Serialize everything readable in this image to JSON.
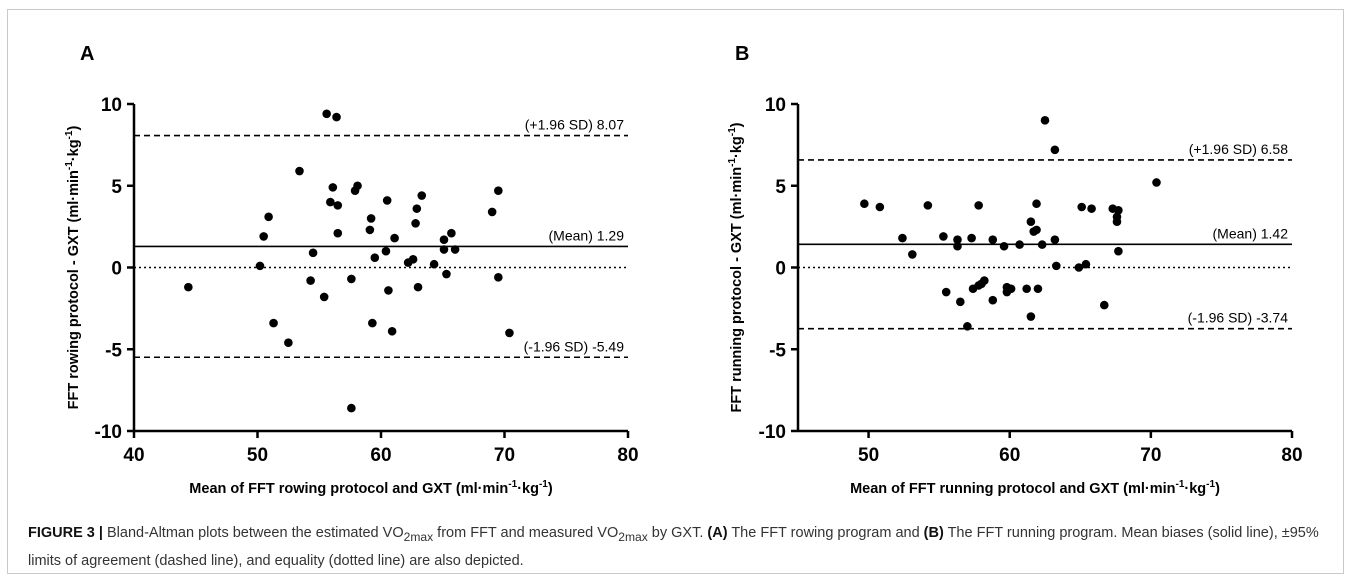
{
  "chart_data": [
    {
      "type": "scatter",
      "panel_letter": "A",
      "ylabel": {
        "pre": "FFT rowing protocol - GXT (ml·min",
        "mid": "·kg",
        "post": ")",
        "sup1": "-1",
        "sup2": "-1"
      },
      "xlabel": {
        "pre": "Mean of FFT rowing protocol and GXT (ml·min",
        "mid": "·kg",
        "post": ")",
        "sup1": "-1",
        "sup2": "-1"
      },
      "xlim": [
        40,
        80
      ],
      "ylim": [
        -10,
        10
      ],
      "xticks": [
        "40",
        "50",
        "60",
        "70",
        "80"
      ],
      "yticks": [
        "10",
        "5",
        "0",
        "-5",
        "-10"
      ],
      "mean_bias": 1.29,
      "upper_loa": 8.07,
      "lower_loa": -5.49,
      "mean_label": "(Mean) 1.29",
      "upper_label": "(+1.96 SD) 8.07",
      "lower_label": "(-1.96 SD) -5.49",
      "points": [
        [
          44.4,
          -1.2
        ],
        [
          50.2,
          0.1
        ],
        [
          50.5,
          1.9
        ],
        [
          50.9,
          3.1
        ],
        [
          51.3,
          -3.4
        ],
        [
          52.5,
          -4.6
        ],
        [
          53.4,
          5.9
        ],
        [
          54.3,
          -0.8
        ],
        [
          54.5,
          0.9
        ],
        [
          55.4,
          -1.8
        ],
        [
          55.6,
          9.4
        ],
        [
          55.9,
          4.0
        ],
        [
          56.1,
          4.9
        ],
        [
          56.4,
          9.2
        ],
        [
          56.5,
          3.8
        ],
        [
          56.5,
          2.1
        ],
        [
          57.6,
          -0.7
        ],
        [
          57.6,
          -8.6
        ],
        [
          57.9,
          4.7
        ],
        [
          58.1,
          5.0
        ],
        [
          59.1,
          2.3
        ],
        [
          59.2,
          3.0
        ],
        [
          59.3,
          -3.4
        ],
        [
          59.5,
          0.6
        ],
        [
          60.4,
          1.0
        ],
        [
          60.5,
          4.1
        ],
        [
          60.6,
          -1.4
        ],
        [
          60.9,
          -3.9
        ],
        [
          61.1,
          1.8
        ],
        [
          62.2,
          0.3
        ],
        [
          62.6,
          0.5
        ],
        [
          62.8,
          2.7
        ],
        [
          62.9,
          3.6
        ],
        [
          63.0,
          -1.2
        ],
        [
          63.3,
          4.4
        ],
        [
          64.3,
          0.2
        ],
        [
          65.1,
          1.7
        ],
        [
          65.1,
          1.1
        ],
        [
          65.3,
          -0.4
        ],
        [
          65.7,
          2.1
        ],
        [
          66.0,
          1.1
        ],
        [
          69.0,
          3.4
        ],
        [
          69.5,
          4.7
        ],
        [
          69.5,
          -0.6
        ],
        [
          70.4,
          -4.0
        ]
      ]
    },
    {
      "type": "scatter",
      "panel_letter": "B",
      "ylabel": {
        "pre": "FFT running protocol - GXT (ml·min",
        "mid": "·kg",
        "post": ")",
        "sup1": "-1",
        "sup2": "-1"
      },
      "xlabel": {
        "pre": "Mean of FFT running protocol and GXT (ml·min",
        "mid": "·kg",
        "post": ")",
        "sup1": "-1",
        "sup2": "-1"
      },
      "xlim": [
        45,
        80
      ],
      "ylim": [
        -10,
        10
      ],
      "xticks": [
        "50",
        "60",
        "70",
        "80"
      ],
      "yticks": [
        "10",
        "5",
        "0",
        "-5",
        "-10"
      ],
      "mean_bias": 1.42,
      "upper_loa": 6.58,
      "lower_loa": -3.74,
      "mean_label": "(Mean) 1.42",
      "upper_label": "(+1.96 SD) 6.58",
      "lower_label": "(-1.96 SD) -3.74",
      "points": [
        [
          49.7,
          3.9
        ],
        [
          50.8,
          3.7
        ],
        [
          52.4,
          1.8
        ],
        [
          53.1,
          0.8
        ],
        [
          54.2,
          3.8
        ],
        [
          55.3,
          1.9
        ],
        [
          55.5,
          -1.5
        ],
        [
          56.3,
          1.7
        ],
        [
          56.3,
          1.3
        ],
        [
          56.5,
          -2.1
        ],
        [
          57.0,
          -3.6
        ],
        [
          57.3,
          1.8
        ],
        [
          57.4,
          -1.3
        ],
        [
          57.8,
          3.8
        ],
        [
          57.8,
          -1.1
        ],
        [
          58.0,
          -1.0
        ],
        [
          58.2,
          -0.8
        ],
        [
          58.8,
          1.7
        ],
        [
          58.8,
          -2.0
        ],
        [
          59.6,
          1.3
        ],
        [
          59.8,
          -1.5
        ],
        [
          59.8,
          -1.2
        ],
        [
          60.1,
          -1.3
        ],
        [
          60.7,
          1.4
        ],
        [
          61.2,
          -1.3
        ],
        [
          61.5,
          2.8
        ],
        [
          61.5,
          -3.0
        ],
        [
          61.7,
          2.2
        ],
        [
          61.9,
          2.3
        ],
        [
          61.9,
          3.9
        ],
        [
          62.0,
          -1.3
        ],
        [
          62.3,
          1.4
        ],
        [
          62.5,
          9.0
        ],
        [
          63.2,
          7.2
        ],
        [
          63.2,
          1.7
        ],
        [
          63.3,
          0.1
        ],
        [
          64.9,
          0.0
        ],
        [
          65.1,
          3.7
        ],
        [
          65.4,
          0.2
        ],
        [
          65.8,
          3.6
        ],
        [
          66.7,
          -2.3
        ],
        [
          67.3,
          3.6
        ],
        [
          67.6,
          3.1
        ],
        [
          67.6,
          2.8
        ],
        [
          67.7,
          3.5
        ],
        [
          67.7,
          1.0
        ],
        [
          70.4,
          5.2
        ]
      ]
    }
  ],
  "caption": {
    "figure_label": "FIGURE 3 |",
    "intro": " Bland-Altman plots between the estimated VO",
    "sub1": "2max",
    "mid": " from FFT and measured VO",
    "sub2": "2max",
    "after": " by GXT. ",
    "label_a": "(A)",
    "text_a": " The FFT rowing program and ",
    "label_b": "(B)",
    "text_b": " The FFT running program. Mean biases (solid line), ±95% limits of agreement (dashed line), and equality (dotted line) are also depicted."
  }
}
